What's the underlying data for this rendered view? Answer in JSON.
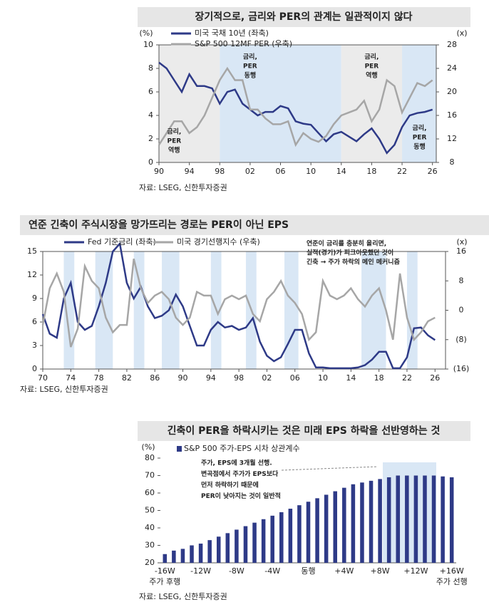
{
  "chart_data": [
    {
      "type": "line",
      "title": "장기적으로, 금리와 PER의 관계는 일관적이지 않다",
      "source": "자료: LSEG, 신한투자증권",
      "y_unit": "(%)",
      "y2_unit": "(x)",
      "x": [
        1990,
        1991,
        1992,
        1993,
        1994,
        1995,
        1996,
        1997,
        1998,
        1999,
        2000,
        2001,
        2002,
        2003,
        2004,
        2005,
        2006,
        2007,
        2008,
        2009,
        2010,
        2011,
        2012,
        2013,
        2014,
        2015,
        2016,
        2017,
        2018,
        2019,
        2020,
        2021,
        2022,
        2023,
        2024,
        2025,
        2026
      ],
      "series": [
        {
          "name": "미국 국채 10년 (좌축)",
          "color": "#2e3a87",
          "values": [
            8.5,
            8.0,
            7.0,
            6.0,
            7.5,
            6.5,
            6.5,
            6.3,
            5.0,
            6.0,
            6.2,
            5.0,
            4.5,
            4.0,
            4.3,
            4.3,
            4.8,
            4.6,
            3.5,
            3.3,
            3.2,
            2.5,
            1.8,
            2.4,
            2.6,
            2.2,
            1.8,
            2.4,
            2.9,
            2.0,
            0.8,
            1.5,
            3.0,
            4.0,
            4.2,
            4.3,
            4.5
          ]
        },
        {
          "name": "S&P 500 12MF PER (우축)",
          "color": "#a6a6a6",
          "axis": "y2",
          "values": [
            11,
            13,
            15,
            15,
            13,
            14,
            16,
            19,
            22,
            24,
            22,
            22,
            17,
            17,
            15.5,
            14.5,
            14.5,
            15,
            11,
            13,
            12,
            11.5,
            12.5,
            14.5,
            16,
            16.5,
            17,
            18.5,
            15,
            17,
            22,
            21,
            16.5,
            19,
            21.5,
            21,
            22
          ]
        }
      ],
      "xlim": [
        1990,
        2026.5
      ],
      "xticks": [
        {
          "value": 1990,
          "label": "90"
        },
        {
          "value": 1994,
          "label": "94"
        },
        {
          "value": 1998,
          "label": "98"
        },
        {
          "value": 2002,
          "label": "02"
        },
        {
          "value": 2006,
          "label": "06"
        },
        {
          "value": 2010,
          "label": "10"
        },
        {
          "value": 2014,
          "label": "14"
        },
        {
          "value": 2018,
          "label": "18"
        },
        {
          "value": 2022,
          "label": "22"
        },
        {
          "value": 2026,
          "label": "26"
        }
      ],
      "ylim": [
        0,
        10
      ],
      "yticks": [
        0,
        2,
        4,
        6,
        8,
        10
      ],
      "y2lim": [
        8,
        28
      ],
      "y2ticks": [
        8,
        12,
        16,
        20,
        24,
        28
      ],
      "shaded_ranges": [
        {
          "from": 1990,
          "to": 1998,
          "color": "#ebebeb"
        },
        {
          "from": 1998,
          "to": 2014,
          "color": "#d9e7f5"
        },
        {
          "from": 2014,
          "to": 2022,
          "color": "#ebebeb"
        },
        {
          "from": 2022,
          "to": 2026.5,
          "color": "#d9e7f5"
        }
      ],
      "annotations": [
        {
          "lines": [
            "금리,",
            "PER",
            "역행"
          ]
        },
        {
          "lines": [
            "금리,",
            "PER",
            "동행"
          ]
        },
        {
          "lines": [
            "금리,",
            "PER",
            "역행"
          ]
        },
        {
          "lines": [
            "금리,",
            "PER",
            "동행"
          ]
        }
      ]
    },
    {
      "type": "line",
      "title": "연준 긴축이 주식시장을 망가뜨리는 경로는 PER이 아닌 EPS",
      "source": "자료: LSEG, 신한투자증권",
      "y2_unit": "(x)",
      "x": [
        1970,
        1971,
        1972,
        1973,
        1974,
        1975,
        1976,
        1977,
        1978,
        1979,
        1980,
        1981,
        1982,
        1983,
        1984,
        1985,
        1986,
        1987,
        1988,
        1989,
        1990,
        1991,
        1992,
        1993,
        1994,
        1995,
        1996,
        1997,
        1998,
        1999,
        2000,
        2001,
        2002,
        2003,
        2004,
        2005,
        2006,
        2007,
        2008,
        2009,
        2010,
        2011,
        2012,
        2013,
        2014,
        2015,
        2016,
        2017,
        2018,
        2019,
        2020,
        2021,
        2022,
        2023,
        2024,
        2025,
        2026
      ],
      "series": [
        {
          "name": "Fed 기준금리 (좌축)",
          "color": "#2e3a87",
          "values": [
            7,
            4.5,
            4,
            9,
            11,
            6,
            5,
            5.5,
            8,
            11,
            15,
            16,
            11,
            9,
            10.5,
            8,
            6.5,
            6.8,
            7.5,
            9.5,
            8,
            5.5,
            3,
            3,
            5,
            6,
            5.3,
            5.5,
            5,
            5.3,
            6.5,
            3.5,
            1.7,
            1,
            1.5,
            3.2,
            5,
            5,
            2,
            0.2,
            0.2,
            0.1,
            0.1,
            0.1,
            0.1,
            0.2,
            0.5,
            1.2,
            2.2,
            2.2,
            0.1,
            0.1,
            1.5,
            5.2,
            5.3,
            4.3,
            3.7
          ]
        },
        {
          "name": "미국 경기선행지수 (우축)",
          "color": "#a6a6a6",
          "axis": "y2",
          "values": [
            -4,
            6,
            10,
            5,
            -10,
            -5,
            12,
            8,
            6,
            -2,
            -6,
            -4,
            -4,
            14,
            6,
            2,
            4,
            5,
            3,
            -2,
            -4,
            -2,
            5,
            4,
            4,
            -1,
            3,
            4,
            3,
            4,
            -1,
            -3,
            3,
            5,
            8,
            4,
            2,
            -1,
            -8,
            -6,
            8,
            4,
            3,
            4,
            6,
            3,
            1,
            4,
            6,
            0,
            -8,
            10,
            -2,
            -8,
            -6,
            -3,
            -2
          ]
        }
      ],
      "xlim": [
        1970,
        2027.5
      ],
      "xticks": [
        {
          "value": 1970,
          "label": "70"
        },
        {
          "value": 1974,
          "label": "74"
        },
        {
          "value": 1978,
          "label": "78"
        },
        {
          "value": 1982,
          "label": "82"
        },
        {
          "value": 1986,
          "label": "86"
        },
        {
          "value": 1990,
          "label": "90"
        },
        {
          "value": 1994,
          "label": "94"
        },
        {
          "value": 1998,
          "label": "98"
        },
        {
          "value": 2002,
          "label": "02"
        },
        {
          "value": 2006,
          "label": "06"
        },
        {
          "value": 2010,
          "label": "10"
        },
        {
          "value": 2014,
          "label": "14"
        },
        {
          "value": 2018,
          "label": "18"
        },
        {
          "value": 2022,
          "label": "22"
        },
        {
          "value": 2026,
          "label": "26"
        }
      ],
      "ylim": [
        0,
        15
      ],
      "yticks": [
        0,
        3,
        6,
        9,
        12,
        15
      ],
      "y2lim": [
        -16,
        16
      ],
      "y2ticks": [
        {
          "value": -16,
          "label": "(16)"
        },
        {
          "value": -8,
          "label": "(8)"
        },
        0,
        8,
        16
      ],
      "shaded_ranges": [
        {
          "from": 1973,
          "to": 1974.5,
          "color": "#d9e7f5"
        },
        {
          "from": 1977.5,
          "to": 1980,
          "color": "#d9e7f5"
        },
        {
          "from": 1983,
          "to": 1984.5,
          "color": "#d9e7f5"
        },
        {
          "from": 1987,
          "to": 1989.5,
          "color": "#d9e7f5"
        },
        {
          "from": 1994,
          "to": 1995.5,
          "color": "#d9e7f5"
        },
        {
          "from": 1999,
          "to": 2000.5,
          "color": "#d9e7f5"
        },
        {
          "from": 2004.5,
          "to": 2006.5,
          "color": "#d9e7f5"
        },
        {
          "from": 2015.5,
          "to": 2019,
          "color": "#d9e7f5"
        },
        {
          "from": 2022,
          "to": 2023.5,
          "color": "#d9e7f5"
        }
      ],
      "annotations": [
        {
          "lines": [
            "연준이 금리를 충분히 올리면,",
            "실적(경기)가 피크아웃했던 것이",
            "긴축 → 주가 하락의 메인 메커니즘"
          ]
        }
      ]
    },
    {
      "type": "bar",
      "title": "긴축이 PER을 하락시키는 것은 미래 EPS 하락을 선반영하는 것",
      "source": "자료: LSEG, 신한투자증권",
      "y_unit": "(%)",
      "categories": [
        "-16W",
        null,
        null,
        null,
        "-12W",
        null,
        null,
        null,
        "-8W",
        null,
        null,
        null,
        "-4W",
        null,
        null,
        null,
        "동행",
        null,
        null,
        null,
        "+4W",
        null,
        null,
        null,
        "+8W",
        null,
        null,
        null,
        "+12W",
        null,
        null,
        null,
        "+16W"
      ],
      "series": [
        {
          "name": "S&P 500 주가-EPS 시차 상관계수",
          "color": "#2e3a87",
          "values": [
            25,
            27,
            28,
            30,
            31,
            33,
            35,
            37,
            39,
            41,
            43,
            45,
            47,
            49,
            51,
            53,
            55,
            57,
            59,
            61,
            63,
            65,
            66,
            67,
            68,
            69,
            70,
            70,
            70,
            70,
            70,
            69.5,
            69
          ]
        }
      ],
      "ylim": [
        20,
        80
      ],
      "yticks": [
        20,
        30,
        40,
        50,
        60,
        70,
        80
      ],
      "x_notes": [
        "주가 후행",
        "주가 선행"
      ],
      "annotations": [
        {
          "lines": [
            "주가, EPS에 3개월 선행.",
            "변곡점에서 주가가 EPS보다",
            "먼저 하락하기 때문에",
            "PER이 낮아지는 것이 일반적"
          ]
        }
      ]
    }
  ]
}
